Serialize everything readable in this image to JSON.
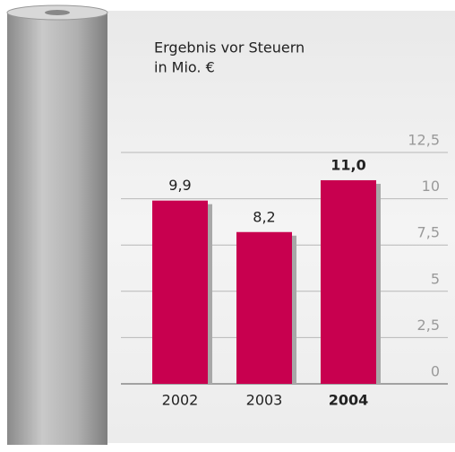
{
  "chart_data": {
    "type": "bar",
    "title": "Ergebnis vor Steuern",
    "subtitle": "in Mio. €",
    "categories": [
      "2002",
      "2003",
      "2004"
    ],
    "values": [
      9.9,
      8.2,
      11.0
    ],
    "value_labels": [
      "9,9",
      "8,2",
      "11,0"
    ],
    "color": "#c8004f",
    "ylim": [
      0,
      12.5
    ],
    "yticks": [
      0,
      {
        "value": 2.5,
        "label": "2,5"
      },
      5,
      {
        "value": 7.5,
        "label": "7,5"
      },
      10,
      {
        "value": 12.5,
        "label": "12,5"
      }
    ],
    "grid": true
  }
}
